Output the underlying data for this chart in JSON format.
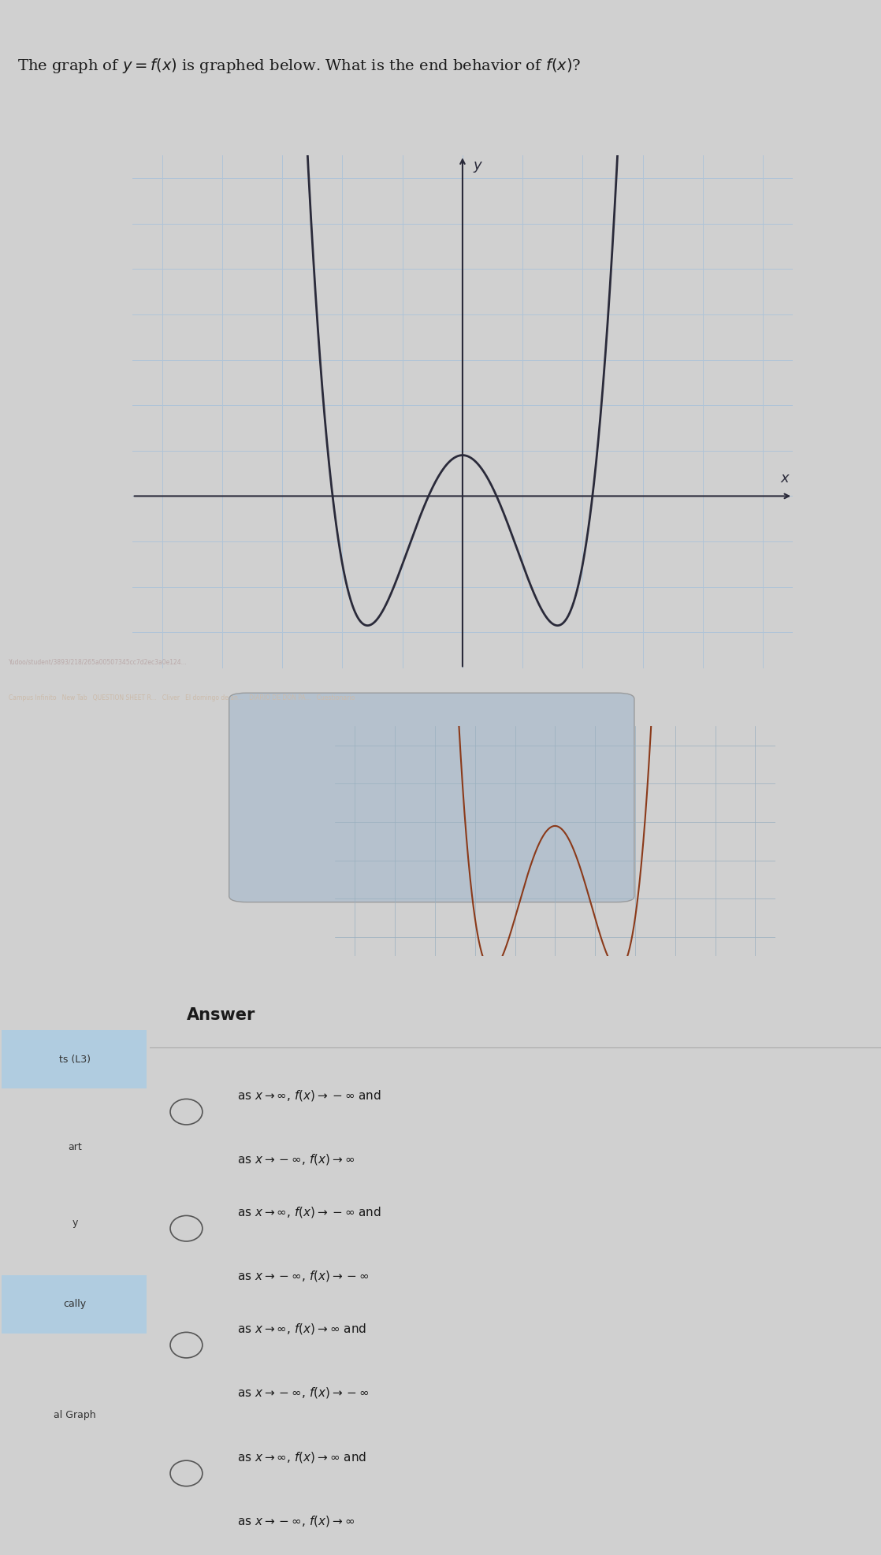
{
  "title": "The graph of $y = f(x)$ is graphed below. What is the end behavior of $f(x)$?",
  "title_fontsize": 14,
  "bg_color": "#d0d0d0",
  "graph_bg": "#dce8f0",
  "grid_color": "#b0c4d8",
  "curve_color": "#2a2a3a",
  "axis_color": "#2a2a3a",
  "answer_header": "Answer",
  "answer_options": [
    [
      "as $x \\to \\infty$, $f(x) \\to -\\infty$ and",
      "as $x \\to -\\infty$, $f(x) \\to \\infty$"
    ],
    [
      "as $x \\to \\infty$, $f(x) \\to -\\infty$ and",
      "as $x \\to -\\infty$, $f(x) \\to -\\infty$"
    ],
    [
      "as $x \\to \\infty$, $f(x) \\to \\infty$ and",
      "as $x \\to -\\infty$, $f(x) \\to -\\infty$"
    ],
    [
      "as $x \\to \\infty$, $f(x) \\to \\infty$ and",
      "as $x \\to -\\infty$, $f(x) \\to \\infty$"
    ]
  ],
  "sidebar_labels": [
    "ts (L3)",
    "art",
    "y",
    "cally",
    "al Graph"
  ],
  "sidebar_highlights": [
    0,
    3
  ],
  "second_graph_color": "#8B3A1A",
  "photo_bg": "#7a6050"
}
